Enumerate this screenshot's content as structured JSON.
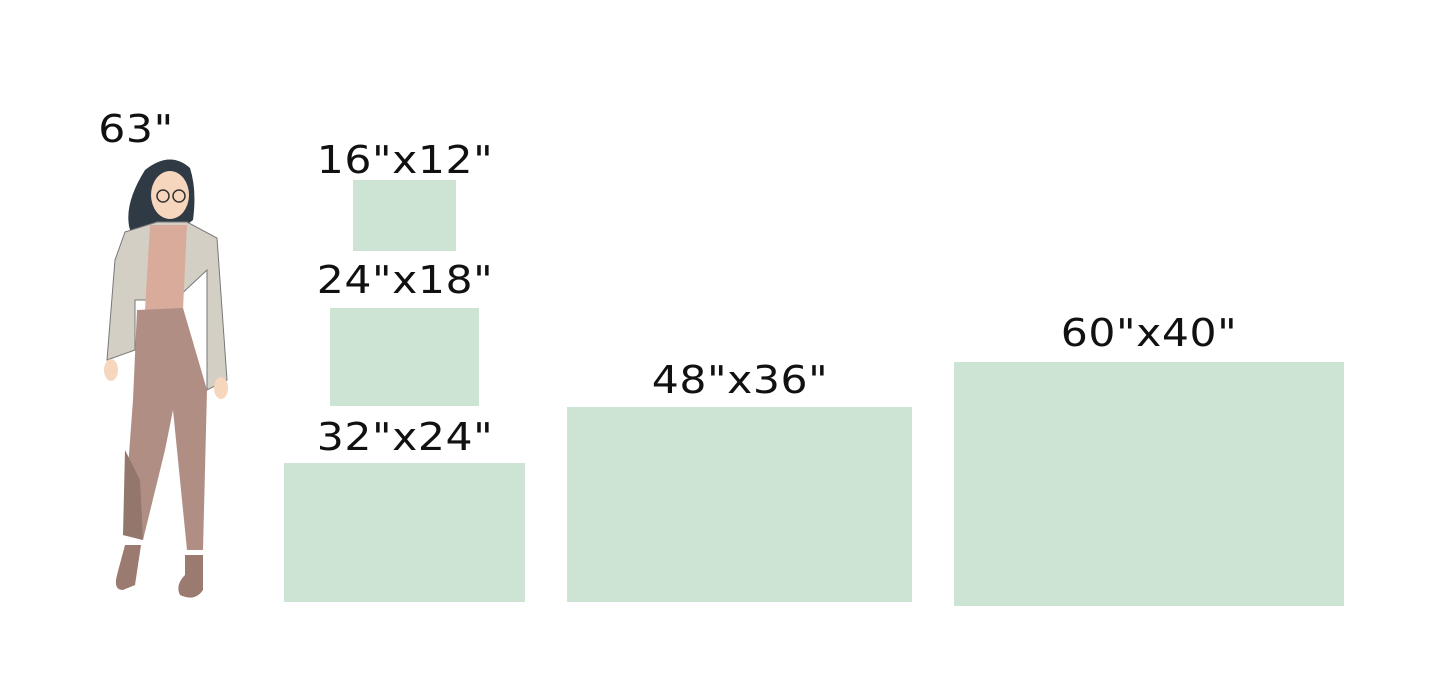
{
  "person": {
    "height_label": "63\"",
    "height_in": 63
  },
  "fill_color": "#cde3d4",
  "sizes": [
    {
      "label": "16\"x12\"",
      "width_in": 16,
      "height_in": 12
    },
    {
      "label": "24\"x18\"",
      "width_in": 24,
      "height_in": 18
    },
    {
      "label": "32\"x24\"",
      "width_in": 32,
      "height_in": 24
    },
    {
      "label": "48\"x36\"",
      "width_in": 48,
      "height_in": 36
    },
    {
      "label": "60\"x40\"",
      "width_in": 60,
      "height_in": 40
    }
  ]
}
